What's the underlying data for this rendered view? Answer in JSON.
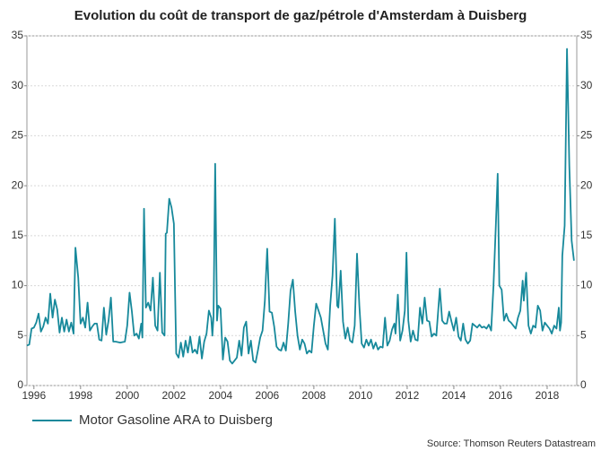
{
  "chart_data": {
    "type": "line",
    "title": "Evolution du coût de transport de gaz/pétrole d'Amsterdam à Duisberg",
    "source": "Source: Thomson Reuters Datastream",
    "legend": "bottom-left",
    "grid": true,
    "xlim": [
      1995.7,
      2019.27
    ],
    "xticks": [
      1996,
      1998,
      2000,
      2002,
      2004,
      2006,
      2008,
      2010,
      2012,
      2014,
      2016,
      2018
    ],
    "ylim": [
      0,
      35
    ],
    "yticks": [
      0,
      5,
      10,
      15,
      20,
      25,
      30,
      35
    ],
    "y2lim": [
      0,
      35
    ],
    "y2ticks": [
      0,
      5,
      10,
      15,
      20,
      25,
      30,
      35
    ],
    "series": [
      {
        "name": "Motor Gasoline ARA to Duisberg",
        "color": "#17899b",
        "x": [
          1995.7,
          1995.8,
          1995.9,
          1996.0,
          1996.1,
          1996.2,
          1996.3,
          1996.4,
          1996.5,
          1996.6,
          1996.7,
          1996.8,
          1996.9,
          1997.0,
          1997.1,
          1997.2,
          1997.3,
          1997.4,
          1997.5,
          1997.6,
          1997.7,
          1997.78,
          1997.9,
          1998.0,
          1998.1,
          1998.2,
          1998.3,
          1998.4,
          1998.5,
          1998.6,
          1998.7,
          1998.8,
          1998.9,
          1999.0,
          1999.1,
          1999.2,
          1999.3,
          1999.4,
          1999.5,
          1999.7,
          1999.9,
          2000.0,
          2000.1,
          2000.2,
          2000.3,
          2000.4,
          2000.5,
          2000.6,
          2000.65,
          2000.72,
          2000.8,
          2000.9,
          2001.0,
          2001.1,
          2001.2,
          2001.3,
          2001.4,
          2001.5,
          2001.6,
          2001.65,
          2001.7,
          2001.8,
          2001.9,
          2002.0,
          2002.05,
          2002.1,
          2002.2,
          2002.3,
          2002.4,
          2002.5,
          2002.6,
          2002.7,
          2002.8,
          2002.9,
          2003.0,
          2003.1,
          2003.2,
          2003.3,
          2003.4,
          2003.5,
          2003.6,
          2003.65,
          2003.7,
          2003.77,
          2003.85,
          2003.9,
          2004.0,
          2004.1,
          2004.2,
          2004.3,
          2004.4,
          2004.5,
          2004.6,
          2004.7,
          2004.8,
          2004.9,
          2005.0,
          2005.1,
          2005.2,
          2005.3,
          2005.4,
          2005.5,
          2005.6,
          2005.7,
          2005.8,
          2005.9,
          2006.0,
          2006.1,
          2006.2,
          2006.3,
          2006.4,
          2006.5,
          2006.6,
          2006.7,
          2006.8,
          2006.9,
          2007.0,
          2007.1,
          2007.2,
          2007.3,
          2007.4,
          2007.5,
          2007.6,
          2007.7,
          2007.8,
          2007.9,
          2008.0,
          2008.1,
          2008.2,
          2008.3,
          2008.4,
          2008.5,
          2008.6,
          2008.7,
          2008.8,
          2008.9,
          2009.0,
          2009.05,
          2009.15,
          2009.25,
          2009.35,
          2009.45,
          2009.55,
          2009.65,
          2009.75,
          2009.85,
          2009.95,
          2010.05,
          2010.15,
          2010.25,
          2010.35,
          2010.45,
          2010.55,
          2010.65,
          2010.75,
          2010.85,
          2010.95,
          2011.05,
          2011.15,
          2011.25,
          2011.35,
          2011.45,
          2011.5,
          2011.6,
          2011.7,
          2011.8,
          2011.9,
          2011.97,
          2012.05,
          2012.15,
          2012.25,
          2012.35,
          2012.45,
          2012.55,
          2012.65,
          2012.75,
          2012.85,
          2012.95,
          2013.05,
          2013.15,
          2013.25,
          2013.4,
          2013.5,
          2013.6,
          2013.7,
          2013.8,
          2013.9,
          2014.0,
          2014.1,
          2014.2,
          2014.3,
          2014.4,
          2014.5,
          2014.6,
          2014.7,
          2014.8,
          2014.9,
          2015.0,
          2015.1,
          2015.2,
          2015.3,
          2015.4,
          2015.5,
          2015.6,
          2015.7,
          2015.8,
          2015.88,
          2015.95,
          2016.05,
          2016.15,
          2016.25,
          2016.35,
          2016.45,
          2016.55,
          2016.65,
          2016.75,
          2016.85,
          2016.95,
          2017.0,
          2017.1,
          2017.2,
          2017.3,
          2017.4,
          2017.5,
          2017.6,
          2017.7,
          2017.8,
          2017.9,
          2018.0,
          2018.1,
          2018.2,
          2018.3,
          2018.4,
          2018.5,
          2018.55,
          2018.6,
          2018.65,
          2018.75,
          2018.85,
          2018.9,
          2018.95,
          2019.05,
          2019.15
        ],
        "values": [
          4.0,
          4.1,
          5.7,
          5.8,
          6.3,
          7.2,
          5.4,
          5.9,
          6.8,
          6.2,
          9.2,
          6.8,
          8.6,
          7.6,
          5.3,
          6.8,
          5.4,
          6.6,
          5.4,
          6.3,
          5.2,
          13.8,
          10.8,
          6.2,
          6.8,
          5.8,
          8.3,
          5.5,
          5.9,
          6.2,
          6.2,
          4.6,
          4.5,
          7.8,
          5.1,
          6.5,
          8.8,
          4.4,
          4.4,
          4.3,
          4.4,
          6.0,
          9.3,
          7.4,
          5.0,
          5.2,
          4.7,
          6.2,
          4.8,
          17.7,
          7.8,
          8.3,
          7.5,
          10.8,
          6.0,
          5.5,
          11.3,
          5.3,
          5.0,
          15.2,
          15.3,
          18.7,
          17.8,
          16.2,
          9.5,
          3.2,
          2.8,
          4.3,
          2.9,
          4.5,
          3.3,
          4.9,
          3.3,
          3.6,
          3.2,
          4.9,
          2.7,
          4.4,
          5.2,
          7.5,
          6.8,
          5.0,
          6.9,
          22.2,
          6.5,
          8.0,
          7.7,
          2.6,
          4.8,
          4.4,
          2.5,
          2.2,
          2.5,
          2.8,
          4.5,
          3.0,
          5.8,
          6.4,
          3.2,
          4.5,
          2.5,
          2.3,
          3.5,
          4.8,
          5.5,
          8.5,
          13.7,
          7.4,
          7.3,
          5.9,
          3.9,
          3.6,
          3.5,
          4.3,
          3.5,
          6.2,
          9.5,
          10.6,
          7.4,
          5.0,
          3.6,
          4.6,
          4.2,
          3.2,
          3.5,
          3.3,
          6.0,
          8.2,
          7.5,
          6.8,
          5.5,
          4.2,
          3.6,
          8.0,
          11.0,
          16.7,
          8.0,
          7.8,
          11.5,
          6.4,
          4.7,
          5.8,
          4.5,
          4.3,
          6.0,
          13.2,
          8.0,
          4.2,
          3.8,
          4.6,
          4.0,
          4.6,
          3.7,
          4.3,
          3.6,
          3.9,
          3.8,
          6.8,
          4.0,
          4.5,
          5.6,
          6.2,
          5.2,
          9.1,
          4.5,
          5.5,
          7.5,
          13.3,
          6.5,
          4.4,
          5.5,
          4.6,
          4.5,
          7.8,
          6.2,
          8.8,
          6.5,
          6.4,
          4.9,
          5.2,
          5.0,
          9.7,
          6.5,
          6.2,
          6.2,
          7.4,
          6.4,
          5.5,
          6.8,
          4.9,
          4.5,
          6.2,
          4.6,
          4.2,
          4.5,
          6.2,
          6.0,
          5.8,
          6.1,
          5.8,
          5.9,
          5.7,
          6.1,
          5.5,
          10.0,
          16.0,
          21.2,
          10.0,
          9.6,
          6.5,
          7.2,
          6.5,
          6.3,
          6.0,
          5.7,
          6.8,
          7.5,
          10.5,
          8.5,
          11.3,
          6.0,
          5.2,
          6.0,
          5.8,
          8.0,
          7.5,
          5.5,
          6.3,
          6.0,
          5.7,
          5.2,
          6.0,
          5.7,
          7.8,
          5.5,
          6.3,
          13.0,
          16.0,
          33.7,
          28.0,
          22.0,
          14.5,
          12.5
        ]
      }
    ]
  }
}
